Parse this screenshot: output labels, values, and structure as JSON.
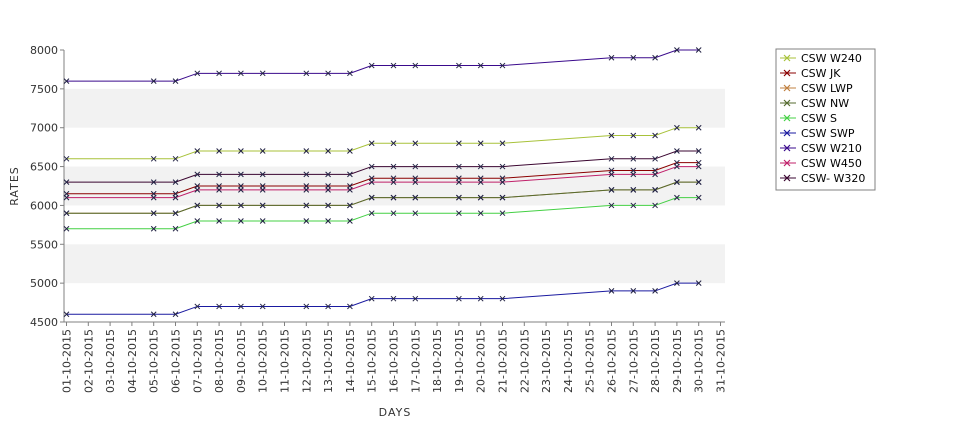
{
  "chart_data": {
    "type": "line",
    "title": "",
    "xlabel": "DAYS",
    "ylabel": "RATES",
    "ylim": [
      4500,
      8000
    ],
    "yticks": [
      4500,
      5000,
      5500,
      6000,
      6500,
      7000,
      7500,
      8000
    ],
    "grid": "alternating horizontal bands",
    "legend_position": "top-right",
    "categories": [
      "01-10-2015",
      "02-10-2015",
      "03-10-2015",
      "04-10-2015",
      "05-10-2015",
      "06-10-2015",
      "07-10-2015",
      "08-10-2015",
      "09-10-2015",
      "10-10-2015",
      "11-10-2015",
      "12-10-2015",
      "13-10-2015",
      "14-10-2015",
      "15-10-2015",
      "16-10-2015",
      "17-10-2015",
      "18-10-2015",
      "19-10-2015",
      "20-10-2015",
      "21-10-2015",
      "22-10-2015",
      "23-10-2015",
      "24-10-2015",
      "25-10-2015",
      "26-10-2015",
      "27-10-2015",
      "28-10-2015",
      "29-10-2015",
      "30-10-2015",
      "31-10-2015"
    ],
    "x": [
      "01-10-2015",
      "05-10-2015",
      "06-10-2015",
      "07-10-2015",
      "08-10-2015",
      "09-10-2015",
      "10-10-2015",
      "12-10-2015",
      "13-10-2015",
      "14-10-2015",
      "15-10-2015",
      "16-10-2015",
      "17-10-2015",
      "19-10-2015",
      "20-10-2015",
      "21-10-2015",
      "26-10-2015",
      "27-10-2015",
      "28-10-2015",
      "29-10-2015",
      "30-10-2015"
    ],
    "series": [
      {
        "name": "CSW  W240",
        "color": "#a8c23a",
        "values": [
          6600,
          6600,
          6600,
          6700,
          6700,
          6700,
          6700,
          6700,
          6700,
          6700,
          6800,
          6800,
          6800,
          6800,
          6800,
          6800,
          6900,
          6900,
          6900,
          7000,
          7000
        ]
      },
      {
        "name": "CSW JK",
        "color": "#8b0000",
        "values": [
          6150,
          6150,
          6150,
          6250,
          6250,
          6250,
          6250,
          6250,
          6250,
          6250,
          6350,
          6350,
          6350,
          6350,
          6350,
          6350,
          6450,
          6450,
          6450,
          6550,
          6550
        ]
      },
      {
        "name": "CSW LWP",
        "color": "#c08040",
        "values": [
          5900,
          5900,
          5900,
          6000,
          6000,
          6000,
          6000,
          6000,
          6000,
          6000,
          6100,
          6100,
          6100,
          6100,
          6100,
          6100,
          6200,
          6200,
          6200,
          6300,
          6300
        ]
      },
      {
        "name": "CSW NW",
        "color": "#556b2f",
        "values": [
          5900,
          5900,
          5900,
          6000,
          6000,
          6000,
          6000,
          6000,
          6000,
          6000,
          6100,
          6100,
          6100,
          6100,
          6100,
          6100,
          6200,
          6200,
          6200,
          6300,
          6300
        ]
      },
      {
        "name": "CSW S",
        "color": "#44d044",
        "values": [
          5700,
          5700,
          5700,
          5800,
          5800,
          5800,
          5800,
          5800,
          5800,
          5800,
          5900,
          5900,
          5900,
          5900,
          5900,
          5900,
          6000,
          6000,
          6000,
          6100,
          6100
        ]
      },
      {
        "name": "CSW SWP",
        "color": "#1a1aa0",
        "values": [
          4600,
          4600,
          4600,
          4700,
          4700,
          4700,
          4700,
          4700,
          4700,
          4700,
          4800,
          4800,
          4800,
          4800,
          4800,
          4800,
          4900,
          4900,
          4900,
          5000,
          5000
        ]
      },
      {
        "name": "CSW W210",
        "color": "#3a0a8c",
        "values": [
          7600,
          7600,
          7600,
          7700,
          7700,
          7700,
          7700,
          7700,
          7700,
          7700,
          7800,
          7800,
          7800,
          7800,
          7800,
          7800,
          7900,
          7900,
          7900,
          8000,
          8000
        ]
      },
      {
        "name": "CSW W450",
        "color": "#c0206a",
        "values": [
          6100,
          6100,
          6100,
          6200,
          6200,
          6200,
          6200,
          6200,
          6200,
          6200,
          6300,
          6300,
          6300,
          6300,
          6300,
          6300,
          6400,
          6400,
          6400,
          6500,
          6500
        ]
      },
      {
        "name": "CSW- W320",
        "color": "#3a0530",
        "values": [
          6300,
          6300,
          6300,
          6400,
          6400,
          6400,
          6400,
          6400,
          6400,
          6400,
          6500,
          6500,
          6500,
          6500,
          6500,
          6500,
          6600,
          6600,
          6600,
          6700,
          6700
        ]
      }
    ]
  }
}
